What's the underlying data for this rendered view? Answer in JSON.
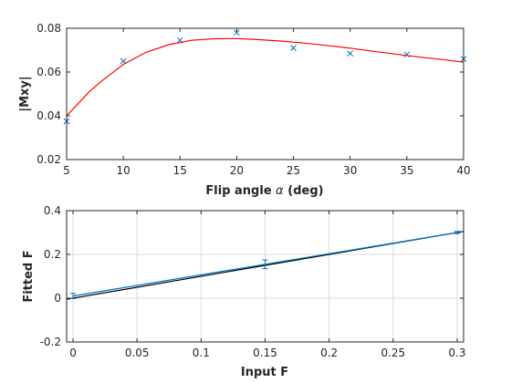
{
  "chart_data": [
    {
      "type": "scatter",
      "xlabel_prefix": "Flip angle ",
      "xlabel_symbol": "α",
      "xlabel_suffix": " (deg)",
      "ylabel": "|Mxy|",
      "xlim": [
        5,
        40
      ],
      "ylim": [
        0.02,
        0.08
      ],
      "xticks": [
        "5",
        "10",
        "15",
        "20",
        "25",
        "30",
        "35",
        "40"
      ],
      "yticks": [
        "0.02",
        "0.04",
        "0.06",
        "0.08"
      ],
      "grid": false,
      "series": [
        {
          "kind": "markers",
          "marker": "x",
          "color": "#0072BD",
          "x": [
            5,
            10,
            15,
            20,
            25,
            30,
            35,
            40
          ],
          "y": [
            0.0375,
            0.065,
            0.0745,
            0.078,
            0.071,
            0.0685,
            0.068,
            0.066
          ]
        },
        {
          "kind": "line",
          "color": "#FF0000",
          "x": [
            5,
            6,
            7,
            8,
            9,
            10,
            12,
            14,
            16,
            18,
            20,
            22,
            24,
            26,
            28,
            30,
            32,
            34,
            36,
            38,
            40
          ],
          "y": [
            0.04,
            0.0455,
            0.051,
            0.0555,
            0.0595,
            0.0635,
            0.069,
            0.0725,
            0.0745,
            0.0752,
            0.0753,
            0.0748,
            0.0741,
            0.0732,
            0.0721,
            0.0709,
            0.0695,
            0.0682,
            0.0669,
            0.0658,
            0.0645
          ]
        }
      ]
    },
    {
      "type": "line",
      "xlabel": "Input F",
      "ylabel": "Fitted F",
      "xlim": [
        -0.005,
        0.305
      ],
      "ylim": [
        -0.2,
        0.4
      ],
      "xticks": [
        "0",
        "0.05",
        "0.1",
        "0.15",
        "0.2",
        "0.25",
        "0.3"
      ],
      "yticks": [
        "-0.2",
        "0",
        "0.2",
        "0.4"
      ],
      "grid": true,
      "series": [
        {
          "kind": "line",
          "color": "#000000",
          "x": [
            -0.005,
            0.305
          ],
          "y": [
            -0.005,
            0.305
          ]
        },
        {
          "kind": "errorbar",
          "color": "#0072BD",
          "x": [
            0,
            0.15,
            0.3
          ],
          "y": [
            0.01,
            0.155,
            0.3
          ],
          "err": [
            0.012,
            0.02,
            0.005
          ]
        }
      ]
    }
  ]
}
